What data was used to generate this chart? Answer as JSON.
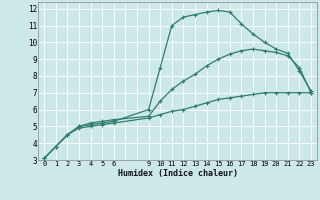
{
  "xlabel": "Humidex (Indice chaleur)",
  "xlim": [
    -0.5,
    23.5
  ],
  "ylim": [
    3,
    12.4
  ],
  "xtick_positions": [
    0,
    1,
    2,
    3,
    4,
    5,
    6,
    9,
    10,
    11,
    12,
    13,
    14,
    15,
    16,
    17,
    18,
    19,
    20,
    21,
    22,
    23
  ],
  "xtick_labels": [
    "0",
    "1",
    "2",
    "3",
    "4",
    "5",
    "6",
    "9",
    "10",
    "11",
    "12",
    "13",
    "14",
    "15",
    "16",
    "17",
    "18",
    "19",
    "20",
    "21",
    "22",
    "23"
  ],
  "ytick_positions": [
    3,
    4,
    5,
    6,
    7,
    8,
    9,
    10,
    11,
    12
  ],
  "ytick_labels": [
    "3",
    "4",
    "5",
    "6",
    "7",
    "8",
    "9",
    "10",
    "11",
    "12"
  ],
  "bg_color": "#cce8e8",
  "grid_color": "#ffffff",
  "line_color": "#2e7d6e",
  "curve1_x": [
    0,
    1,
    2,
    3,
    4,
    5,
    6,
    9,
    10,
    11,
    12,
    13,
    14,
    15,
    16,
    17,
    18,
    19,
    20,
    21,
    22,
    23
  ],
  "curve1_y": [
    3.1,
    3.8,
    4.5,
    5.0,
    5.1,
    5.2,
    5.3,
    6.0,
    8.5,
    11.0,
    11.5,
    11.65,
    11.8,
    11.9,
    11.8,
    11.1,
    10.5,
    10.0,
    9.6,
    9.35,
    8.3,
    7.1
  ],
  "curve2_x": [
    0,
    1,
    2,
    3,
    4,
    5,
    6,
    9,
    10,
    11,
    12,
    13,
    14,
    15,
    16,
    17,
    18,
    19,
    20,
    21,
    22,
    23
  ],
  "curve2_y": [
    3.1,
    3.8,
    4.5,
    5.0,
    5.2,
    5.3,
    5.4,
    5.6,
    6.5,
    7.2,
    7.7,
    8.1,
    8.6,
    9.0,
    9.3,
    9.5,
    9.6,
    9.5,
    9.4,
    9.2,
    8.5,
    7.0
  ],
  "curve3_x": [
    0,
    1,
    2,
    3,
    4,
    5,
    6,
    9,
    10,
    11,
    12,
    13,
    14,
    15,
    16,
    17,
    18,
    19,
    20,
    21,
    22,
    23
  ],
  "curve3_y": [
    3.1,
    3.8,
    4.5,
    4.9,
    5.0,
    5.1,
    5.2,
    5.5,
    5.7,
    5.9,
    6.0,
    6.2,
    6.4,
    6.6,
    6.7,
    6.8,
    6.9,
    7.0,
    7.0,
    7.0,
    7.0,
    7.0
  ]
}
